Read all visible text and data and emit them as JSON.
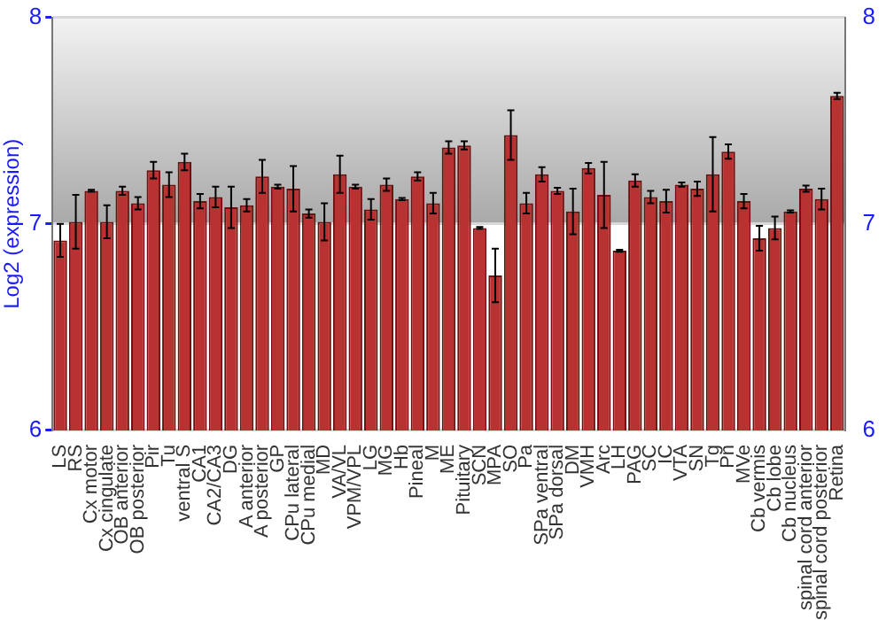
{
  "chart_data": {
    "type": "bar",
    "ylabel": "Log2 (expression)",
    "categories": [
      "LS",
      "RS",
      "Cx motor",
      "Cx cingulate",
      "OB anterior",
      "OB posterior",
      "Pir",
      "Tu",
      "ventral S",
      "CA1",
      "CA2/CA3",
      "DG",
      "A anterior",
      "A posterior",
      "GP",
      "CPu lateral",
      "CPu medial",
      "MD",
      "VA/VL",
      "VPM/VPL",
      "LG",
      "MG",
      "Hb",
      "Pineal",
      "M",
      "ME",
      "Pituitary",
      "SCN",
      "MPA",
      "SO",
      "Pa",
      "SPa ventral",
      "SPa dorsal",
      "DM",
      "VMH",
      "Arc",
      "LH",
      "PAG",
      "SC",
      "IC",
      "VTA",
      "SN",
      "Tg",
      "Pn",
      "MVe",
      "Cb vermis",
      "Cb lobe",
      "Cb nucleus",
      "spinal cord anterior",
      "spinal cord posterior",
      "Retina"
    ],
    "values": [
      6.92,
      7.01,
      7.16,
      7.01,
      7.16,
      7.1,
      7.26,
      7.19,
      7.3,
      7.11,
      7.13,
      7.08,
      7.09,
      7.23,
      7.18,
      7.17,
      7.05,
      7.01,
      7.24,
      7.18,
      7.07,
      7.19,
      7.12,
      7.23,
      7.1,
      7.37,
      7.38,
      6.98,
      6.75,
      7.43,
      7.1,
      7.24,
      7.16,
      7.06,
      7.27,
      7.14,
      6.87,
      7.21,
      7.13,
      7.11,
      7.19,
      7.17,
      7.24,
      7.35,
      7.11,
      6.93,
      6.98,
      7.06,
      7.17,
      7.12,
      7.62
    ],
    "errors": [
      0.08,
      0.13,
      0.005,
      0.08,
      0.02,
      0.03,
      0.04,
      0.06,
      0.04,
      0.035,
      0.05,
      0.1,
      0.03,
      0.08,
      0.01,
      0.11,
      0.02,
      0.09,
      0.09,
      0.01,
      0.05,
      0.03,
      0.005,
      0.02,
      0.05,
      0.03,
      0.02,
      0.005,
      0.13,
      0.12,
      0.05,
      0.035,
      0.015,
      0.11,
      0.025,
      0.16,
      0.005,
      0.03,
      0.03,
      0.055,
      0.01,
      0.035,
      0.18,
      0.035,
      0.035,
      0.06,
      0.055,
      0.005,
      0.015,
      0.05,
      0.015
    ],
    "color": "#b83232",
    "ylim": [
      6,
      8
    ],
    "yticks": [
      6,
      7,
      8
    ],
    "y2lim": [
      6,
      8
    ],
    "y2ticks": [
      6,
      7,
      8
    ],
    "grid": "y"
  }
}
